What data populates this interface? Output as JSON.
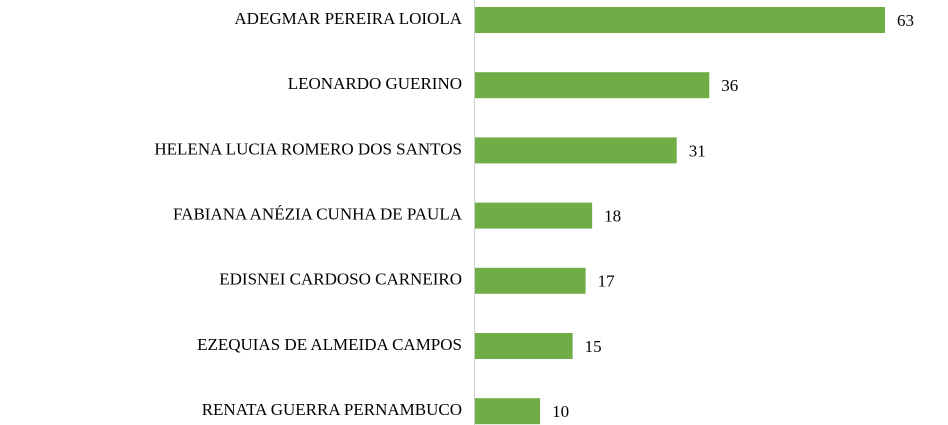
{
  "chart_data": {
    "type": "bar",
    "orientation": "horizontal",
    "categories": [
      "ADEGMAR PEREIRA LOIOLA",
      "LEONARDO GUERINO",
      "HELENA LUCIA ROMERO DOS SANTOS",
      "FABIANA ANÉZIA CUNHA DE PAULA",
      "EDISNEI CARDOSO CARNEIRO",
      "EZEQUIAS DE ALMEIDA CAMPOS",
      "RENATA GUERRA PERNAMBUCO"
    ],
    "values": [
      63,
      36,
      31,
      18,
      17,
      15,
      10
    ],
    "color": "#70ad47"
  }
}
